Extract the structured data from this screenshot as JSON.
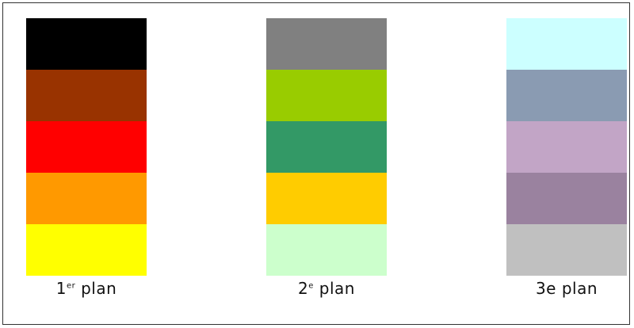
{
  "columns": [
    {
      "number": "1",
      "superscript": "er",
      "label": "plan",
      "colors": [
        "#000000",
        "#993300",
        "#ff0000",
        "#ff9900",
        "#ffff00"
      ]
    },
    {
      "number": "2",
      "superscript": "e",
      "label": "plan",
      "colors": [
        "#808080",
        "#99cc00",
        "#339966",
        "#ffcc00",
        "#ccffcc"
      ]
    },
    {
      "number": "3e",
      "superscript": "",
      "label": "plan",
      "colors": [
        "#ccffff",
        "#8a9bb2",
        "#c2a5c6",
        "#9a829f",
        "#c0c0c0"
      ]
    }
  ]
}
